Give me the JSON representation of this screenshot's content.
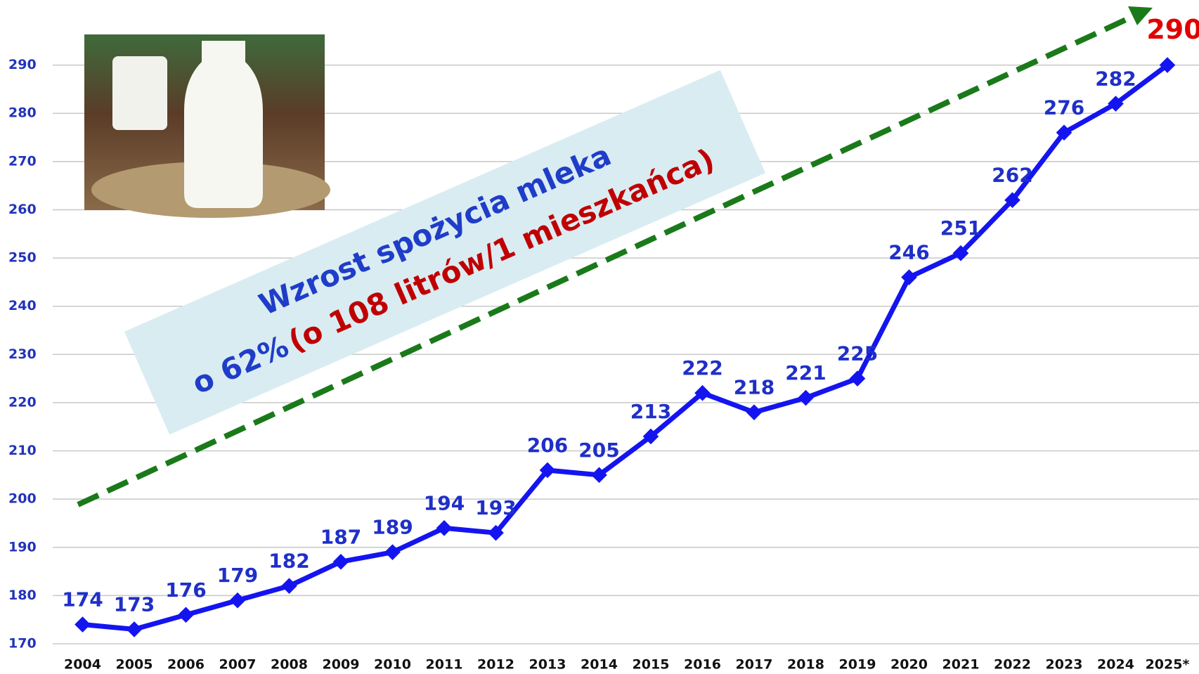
{
  "chart_data": {
    "type": "line",
    "categories": [
      "2004",
      "2005",
      "2006",
      "2007",
      "2008",
      "2009",
      "2010",
      "2011",
      "2012",
      "2013",
      "2014",
      "2015",
      "2016",
      "2017",
      "2018",
      "2019",
      "2020",
      "2021",
      "2022",
      "2023",
      "2024",
      "2025*"
    ],
    "series": [
      {
        "color": "#1414f0",
        "values": [
          174,
          173,
          176,
          179,
          182,
          187,
          189,
          194,
          193,
          206,
          205,
          213,
          222,
          218,
          221,
          225,
          246,
          251,
          262,
          276,
          282,
          290
        ]
      }
    ],
    "ylim": [
      170,
      300
    ],
    "yticks": [
      170,
      180,
      190,
      200,
      210,
      220,
      230,
      240,
      250,
      260,
      270,
      280,
      290
    ],
    "grid": true,
    "annotation": {
      "line1": "Wzrost spożycia mleka",
      "line2a": "o 62%",
      "line2b": "(o 108 litrów/1 mieszkańca)"
    }
  }
}
